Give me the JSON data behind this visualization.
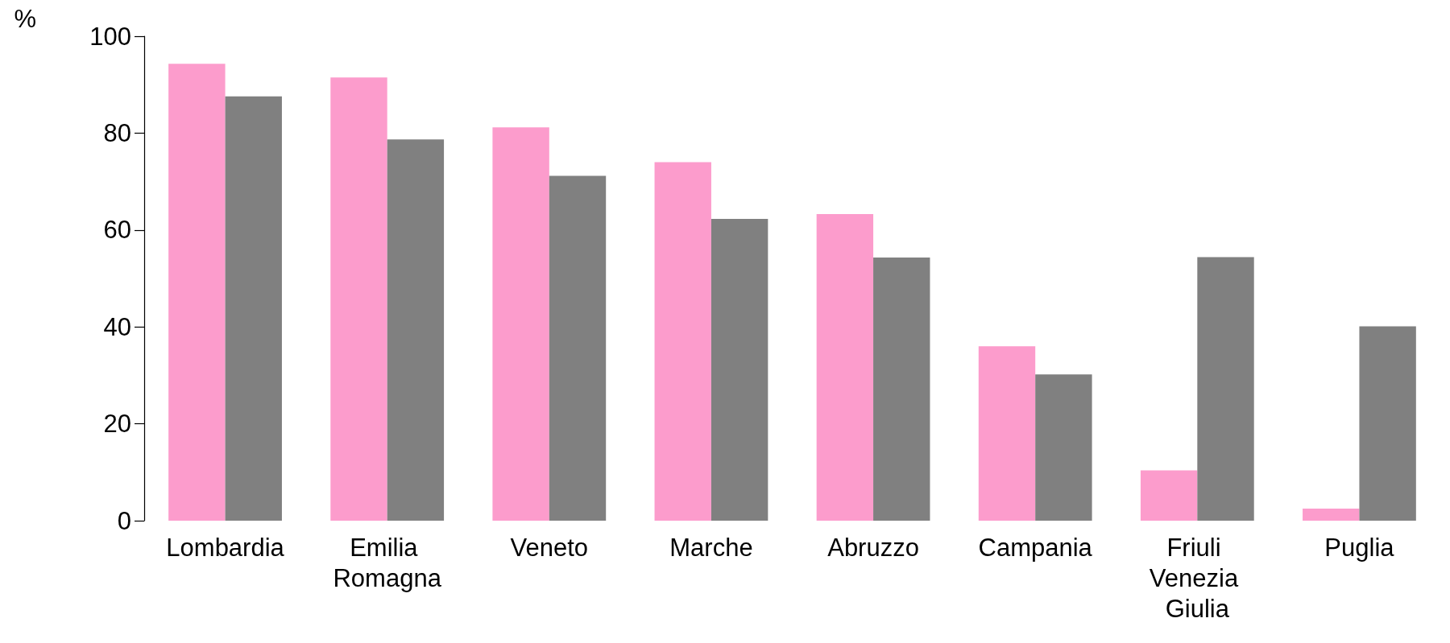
{
  "chart_data": {
    "type": "bar",
    "ylabel": "%",
    "categories": [
      "Lombardia",
      "Emilia Romagna",
      "Veneto",
      "Marche",
      "Abruzzo",
      "Campania",
      "Friuli Venezia Giulia",
      "Puglia"
    ],
    "series": [
      {
        "color": "#fc9ccc",
        "values": [
          94.3,
          91.5,
          81.2,
          74.0,
          63.3,
          36.0,
          10.4,
          2.5
        ]
      },
      {
        "color": "#808080",
        "values": [
          87.6,
          78.7,
          71.2,
          62.3,
          54.3,
          30.2,
          54.4,
          40.1
        ]
      }
    ],
    "ylim": [
      0,
      100
    ],
    "yticks": [
      0,
      20,
      40,
      60,
      80,
      100
    ]
  }
}
